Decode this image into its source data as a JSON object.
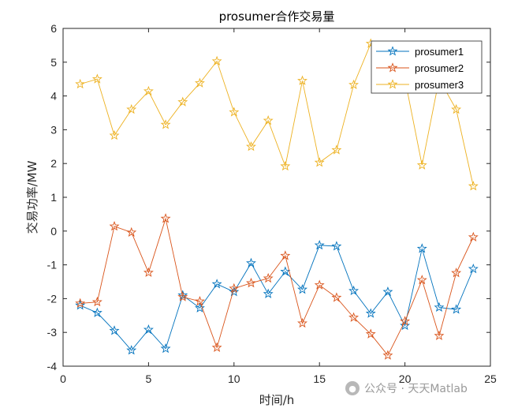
{
  "chart_data": {
    "type": "line",
    "title": "prosumer合作交易量",
    "xlabel": "时间/h",
    "ylabel": "交易功率/MW",
    "xlim": [
      0,
      25
    ],
    "ylim": [
      -4,
      6
    ],
    "x_ticks": [
      0,
      5,
      10,
      15,
      20,
      25
    ],
    "y_ticks": [
      -4,
      -3,
      -2,
      -1,
      0,
      1,
      2,
      3,
      4,
      5,
      6
    ],
    "grid": false,
    "legend_position": "top-right",
    "marker": "star",
    "x": [
      1,
      2,
      3,
      4,
      5,
      6,
      7,
      8,
      9,
      10,
      11,
      12,
      13,
      14,
      15,
      16,
      17,
      18,
      19,
      20,
      21,
      22,
      23,
      24
    ],
    "series": [
      {
        "name": "prosumer1",
        "color": "#0072BD",
        "values": [
          -2.2,
          -2.42,
          -2.95,
          -3.53,
          -2.92,
          -3.48,
          -1.9,
          -2.28,
          -1.57,
          -1.8,
          -0.95,
          -1.86,
          -1.2,
          -1.73,
          -0.42,
          -0.45,
          -1.77,
          -2.44,
          -1.8,
          -2.8,
          -0.52,
          -2.26,
          -2.32,
          -1.12
        ]
      },
      {
        "name": "prosumer2",
        "color": "#D95319",
        "values": [
          -2.14,
          -2.1,
          0.14,
          -0.04,
          -1.23,
          0.37,
          -1.95,
          -2.08,
          -3.45,
          -1.7,
          -1.54,
          -1.4,
          -0.73,
          -2.73,
          -1.6,
          -1.97,
          -2.56,
          -3.05,
          -3.68,
          -2.67,
          -1.45,
          -3.1,
          -1.24,
          -0.18
        ]
      },
      {
        "name": "prosumer3",
        "color": "#EDB120",
        "values": [
          4.35,
          4.5,
          2.83,
          3.6,
          4.14,
          3.15,
          3.82,
          4.38,
          5.03,
          3.52,
          2.5,
          3.27,
          1.92,
          4.45,
          2.03,
          2.4,
          4.33,
          5.55,
          4.75,
          4.5,
          1.95,
          4.5,
          3.6,
          1.33
        ]
      }
    ]
  },
  "watermark": {
    "text": "公众号 · 天天Matlab"
  }
}
